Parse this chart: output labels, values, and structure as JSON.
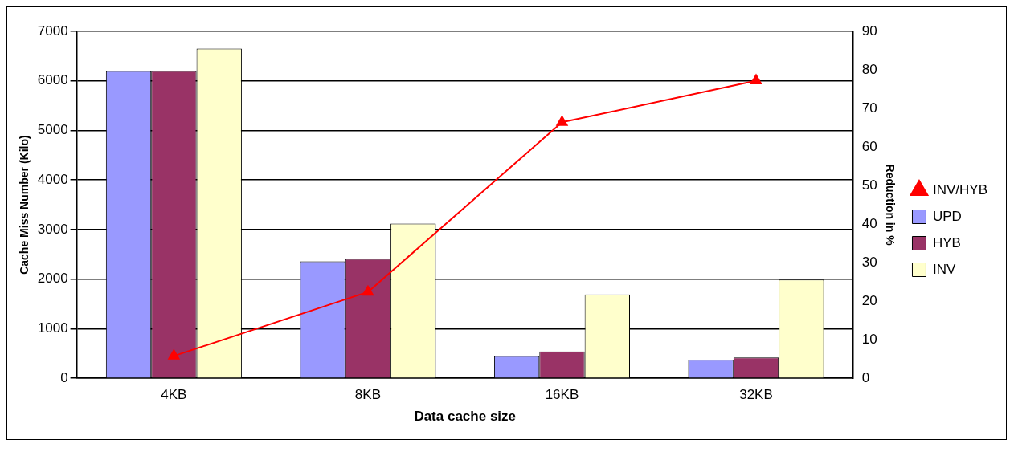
{
  "chart_data": {
    "type": "bar",
    "xlabel": "Data cache size",
    "ylabel": "Cache Miss Number (Kilo)",
    "y2label": "Reduction in %",
    "categories": [
      "4KB",
      "8KB",
      "16KB",
      "32KB"
    ],
    "series": [
      {
        "name": "UPD",
        "color": "#9999ff",
        "values": [
          6200,
          2360,
          450,
          370
        ]
      },
      {
        "name": "HYB",
        "color": "#993366",
        "values": [
          6200,
          2410,
          540,
          420
        ]
      },
      {
        "name": "INV",
        "color": "#ffffcc",
        "values": [
          6650,
          3120,
          1690,
          1990
        ]
      },
      {
        "name": "INV/HYB",
        "type": "line",
        "axis": "y2",
        "color": "#ff0000",
        "marker": "triangle",
        "values": [
          5.8,
          22.4,
          66.4,
          77.2
        ]
      }
    ],
    "ylim": [
      0,
      7000
    ],
    "yticks": [
      0,
      1000,
      2000,
      3000,
      4000,
      5000,
      6000,
      7000
    ],
    "y2lim": [
      0,
      90
    ],
    "y2ticks": [
      0,
      10,
      20,
      30,
      40,
      50,
      60,
      70,
      80,
      90
    ],
    "grid": "y",
    "legend": "right"
  }
}
